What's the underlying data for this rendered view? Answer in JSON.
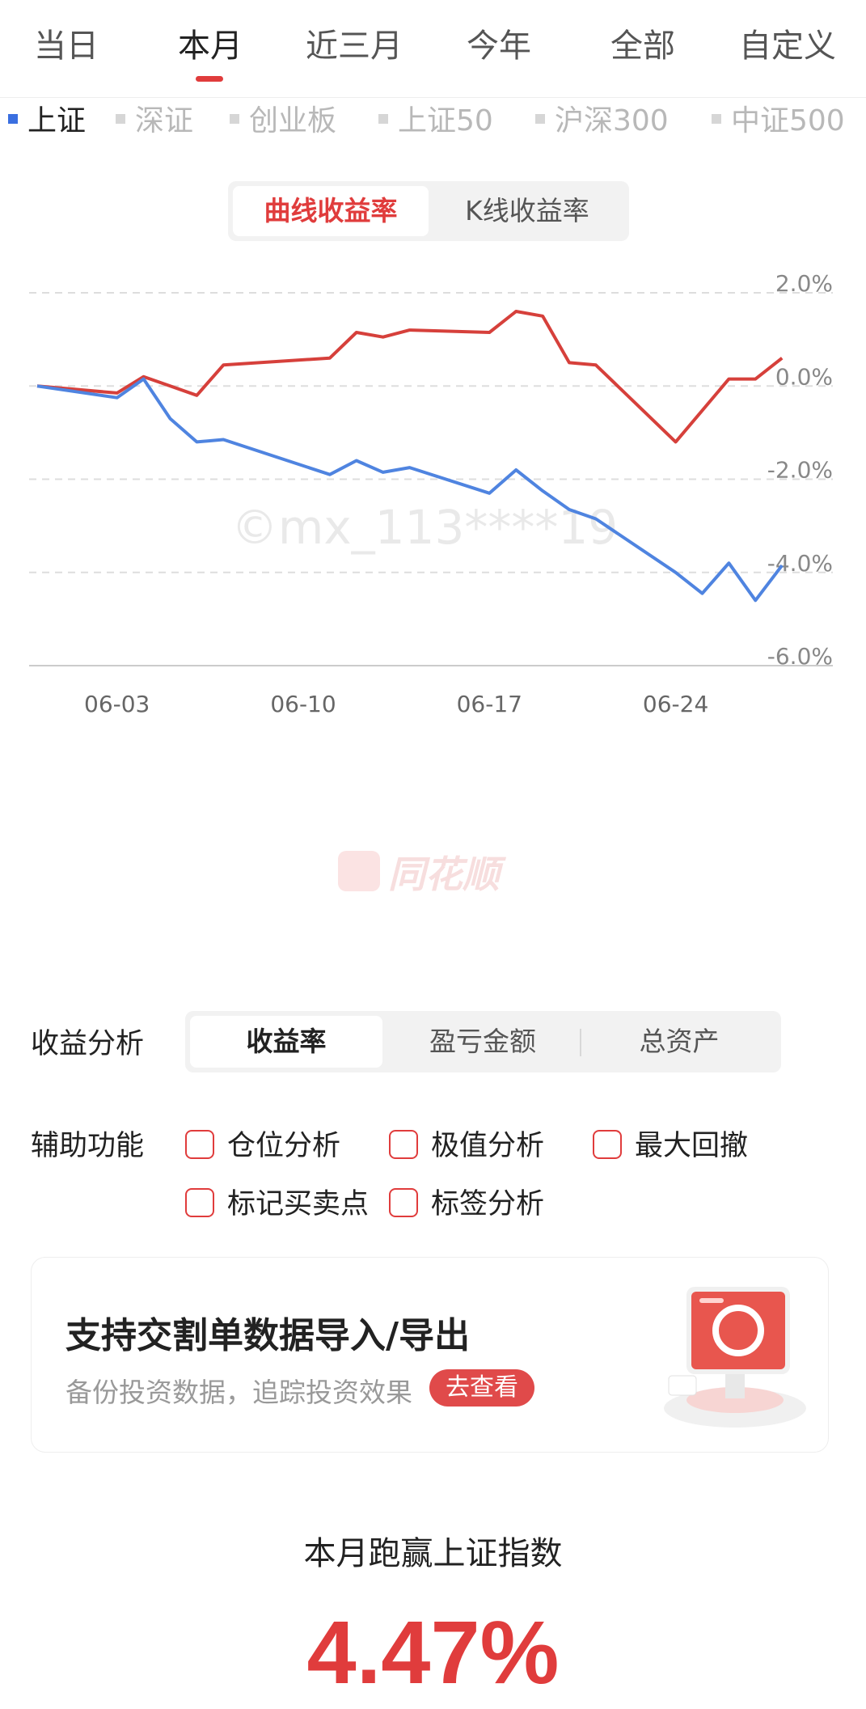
{
  "period_tabs": [
    {
      "label": "当日",
      "active": false
    },
    {
      "label": "本月",
      "active": true
    },
    {
      "label": "近三月",
      "active": false
    },
    {
      "label": "今年",
      "active": false
    },
    {
      "label": "全部",
      "active": false
    },
    {
      "label": "自定义",
      "active": false
    }
  ],
  "index_tabs": [
    {
      "label": "上证",
      "active": true
    },
    {
      "label": "深证",
      "active": false
    },
    {
      "label": "创业板",
      "active": false
    },
    {
      "label": "上证50",
      "active": false
    },
    {
      "label": "沪深300",
      "active": false
    },
    {
      "label": "中证500",
      "active": false
    }
  ],
  "chart_mode": {
    "curve": "曲线收益率",
    "kline": "K线收益率",
    "active": "curve"
  },
  "watermark": {
    "user": "©mx_113****19",
    "brand": "同花顺"
  },
  "chart_data": {
    "type": "line",
    "ylim": [
      -6.0,
      2.0
    ],
    "yticks": [
      "2.0%",
      "0.0%",
      "-2.0%",
      "-4.0%",
      "-6.0%"
    ],
    "ytick_values": [
      2.0,
      0.0,
      -2.0,
      -4.0,
      -6.0
    ],
    "xticks": [
      "06-03",
      "06-10",
      "06-17",
      "06-24"
    ],
    "xtick_index": [
      3,
      10,
      17,
      24
    ],
    "xlim": [
      0,
      28
    ],
    "grid": true,
    "series": [
      {
        "color": "#d6403b",
        "x": [
          0,
          3,
          4,
          5,
          6,
          7,
          11,
          12,
          13,
          14,
          17,
          18,
          19,
          20,
          21,
          24,
          26,
          27,
          28
        ],
        "values": [
          0.0,
          -0.15,
          0.2,
          0.0,
          -0.2,
          0.45,
          0.6,
          1.15,
          1.05,
          1.2,
          1.15,
          1.6,
          1.5,
          0.5,
          0.45,
          -1.2,
          0.15,
          0.15,
          0.6
        ]
      },
      {
        "color": "#4f84e0",
        "x": [
          0,
          3,
          4,
          5,
          6,
          7,
          11,
          12,
          13,
          14,
          17,
          18,
          19,
          20,
          21,
          24,
          25,
          26,
          27,
          28
        ],
        "values": [
          0.0,
          -0.25,
          0.15,
          -0.7,
          -1.2,
          -1.15,
          -1.9,
          -1.6,
          -1.85,
          -1.75,
          -2.3,
          -1.8,
          -2.25,
          -2.65,
          -2.85,
          -4.0,
          -4.45,
          -3.8,
          -4.6,
          -3.85
        ]
      }
    ]
  },
  "analysis": {
    "label": "收益分析",
    "tabs": [
      {
        "label": "收益率",
        "active": true
      },
      {
        "label": "盈亏金额",
        "active": false
      },
      {
        "label": "总资产",
        "active": false
      }
    ]
  },
  "aux": {
    "label": "辅助功能",
    "options": [
      "仓位分析",
      "极值分析",
      "最大回撤",
      "标记买卖点",
      "标签分析"
    ]
  },
  "promo": {
    "title": "支持交割单数据导入/导出",
    "subtitle": "备份投资数据，追踪投资效果",
    "button": "去查看"
  },
  "beat": {
    "title": "本月跑赢上证指数",
    "value": "4.47%"
  }
}
